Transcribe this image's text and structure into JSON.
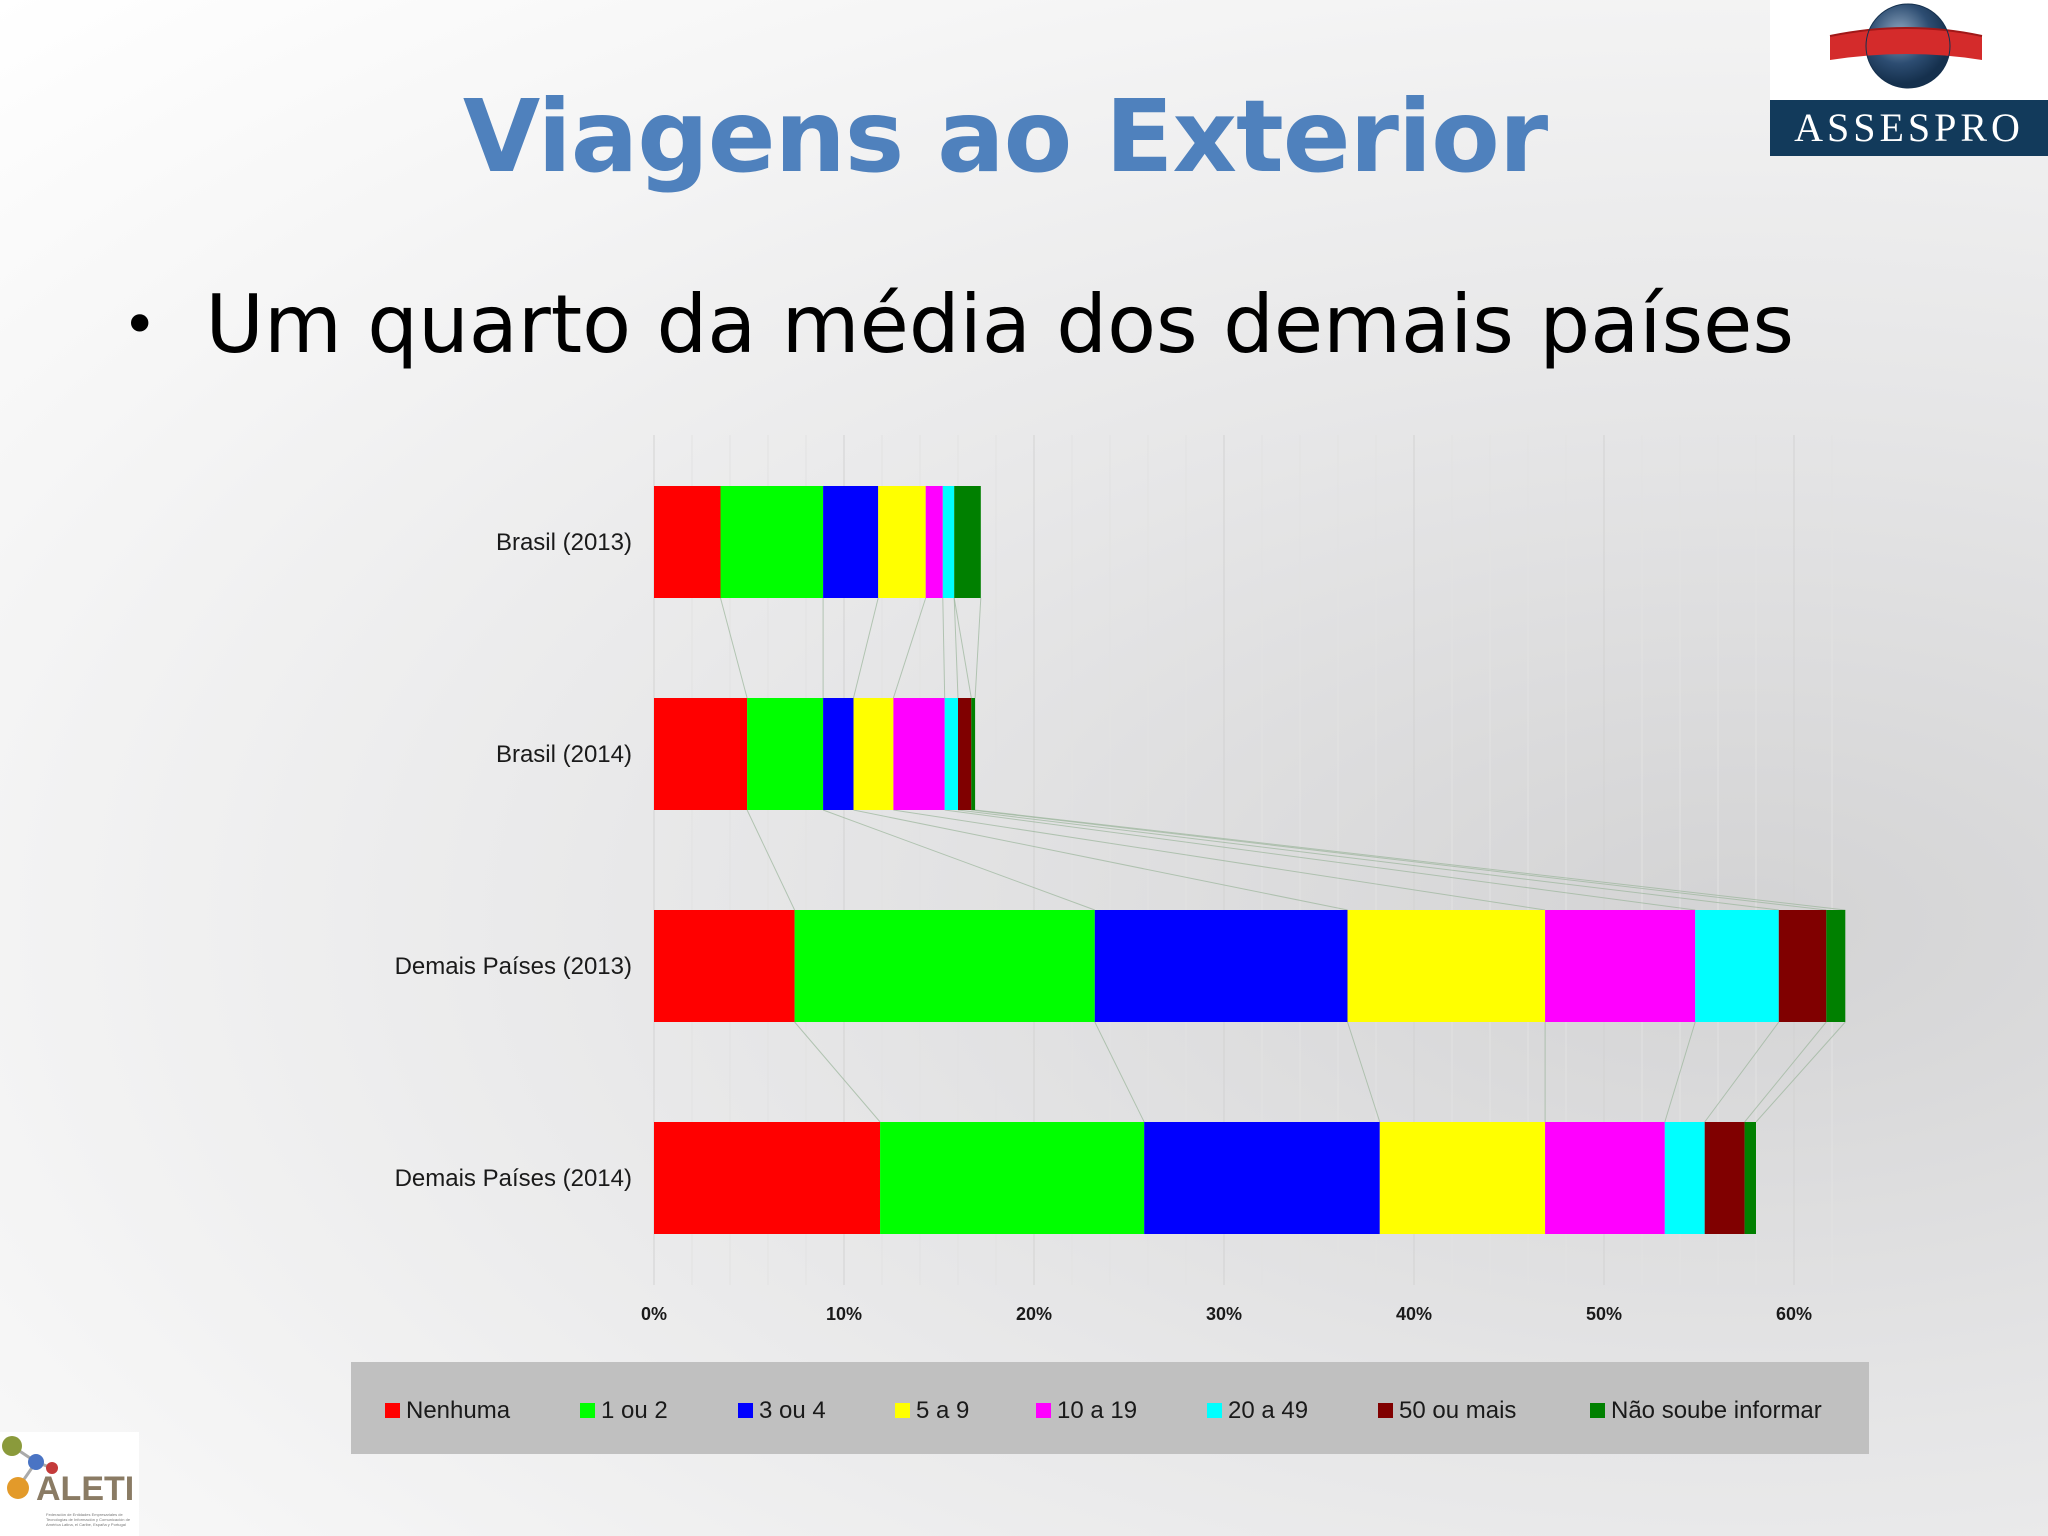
{
  "slide": {
    "title": "Viagens ao Exterior",
    "bullet": "Um quarto da média dos demais países"
  },
  "logos": {
    "assespro": "ASSESPRO",
    "aleti": "ALETI",
    "aleti_tagline": "Federación de Entidades Empresariales de Tecnologías de Información y Comunicación de América Latina, el Caribe, España y Portugal"
  },
  "chart_data": {
    "type": "bar",
    "orientation": "horizontal",
    "stacked": true,
    "title": "",
    "xlabel": "",
    "ylabel": "",
    "xlim": [
      0,
      60
    ],
    "x_ticks": [
      "0%",
      "10%",
      "20%",
      "30%",
      "40%",
      "50%",
      "60%"
    ],
    "categories": [
      "Brasil (2013)",
      "Brasil (2014)",
      "Demais Países (2013)",
      "Demais Países (2014)"
    ],
    "series": [
      {
        "name": "Nenhuma",
        "color": "#ff0000",
        "values": [
          3.5,
          4.9,
          7.4,
          11.9
        ]
      },
      {
        "name": "1 ou 2",
        "color": "#00ff00",
        "values": [
          5.4,
          4.0,
          15.8,
          13.9
        ]
      },
      {
        "name": "3 ou 4",
        "color": "#0000ff",
        "values": [
          2.9,
          1.6,
          13.3,
          12.4
        ]
      },
      {
        "name": "5 a 9",
        "color": "#ffff00",
        "values": [
          2.5,
          2.1,
          10.4,
          8.7
        ]
      },
      {
        "name": "10 a 19",
        "color": "#ff00ff",
        "values": [
          0.9,
          2.7,
          7.9,
          6.3
        ]
      },
      {
        "name": "20 a 49",
        "color": "#00ffff",
        "values": [
          0.6,
          0.7,
          4.4,
          2.1
        ]
      },
      {
        "name": "50 ou mais",
        "color": "#800000",
        "values": [
          0.0,
          0.7,
          2.5,
          2.1
        ]
      },
      {
        "name": "Não soube informar",
        "color": "#008000",
        "values": [
          1.4,
          0.2,
          1.0,
          0.6
        ]
      }
    ],
    "grid": true,
    "series_lines": true,
    "legend_position": "bottom"
  }
}
